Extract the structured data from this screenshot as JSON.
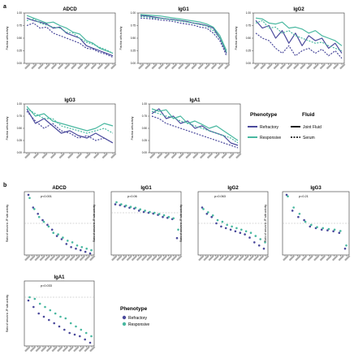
{
  "panel_labels": {
    "a": "a",
    "b": "b"
  },
  "legend_a": {
    "phenotype_title": "Phenotype",
    "fluid_title": "Fluid",
    "refractory": "Refractory",
    "responsive": "Responsive",
    "joint_fluid": "Joint Fluid",
    "serum": "Serum"
  },
  "legend_b": {
    "phenotype_title": "Phenotype",
    "refractory": "Refractory",
    "responsive": "Responsive"
  },
  "colors": {
    "refractory": "#4b4a9c",
    "responsive": "#49b8a0",
    "black": "#1a1a1a",
    "reference": "#b3b3b3"
  },
  "chart_data": [
    {
      "type": "line",
      "title": "ADCD",
      "ylabel": "Fraction with activity",
      "ylim": [
        0,
        1
      ],
      "yticks": [
        "1.00",
        "0.75",
        "0.50",
        "0.25",
        "0.00"
      ],
      "xlabel": "",
      "series": [
        {
          "name": "Refractory Joint Fluid",
          "values": [
            0.9,
            0.85,
            0.82,
            0.78,
            0.7,
            0.72,
            0.6,
            0.55,
            0.5,
            0.35,
            0.3,
            0.25,
            0.2,
            0.15
          ]
        },
        {
          "name": "Responsive Joint Fluid",
          "values": [
            0.95,
            0.9,
            0.85,
            0.8,
            0.82,
            0.75,
            0.7,
            0.62,
            0.58,
            0.45,
            0.4,
            0.3,
            0.25,
            0.2
          ]
        },
        {
          "name": "Refractory Serum",
          "values": [
            0.75,
            0.8,
            0.7,
            0.72,
            0.6,
            0.55,
            0.5,
            0.45,
            0.4,
            0.3,
            0.28,
            0.22,
            0.18,
            0.12
          ]
        },
        {
          "name": "Responsive Serum",
          "values": [
            0.85,
            0.88,
            0.8,
            0.76,
            0.72,
            0.7,
            0.62,
            0.6,
            0.5,
            0.42,
            0.38,
            0.32,
            0.27,
            0.2
          ]
        }
      ]
    },
    {
      "type": "line",
      "title": "IgG1",
      "ylabel": "Fraction with activity",
      "ylim": [
        0,
        1
      ],
      "yticks": [
        "1.00",
        "0.75",
        "0.50",
        "0.25",
        "0.00"
      ],
      "xlabel": "",
      "series": [
        {
          "name": "Refractory Joint Fluid",
          "values": [
            0.95,
            0.94,
            0.92,
            0.9,
            0.88,
            0.87,
            0.85,
            0.83,
            0.8,
            0.78,
            0.75,
            0.7,
            0.5,
            0.2
          ]
        },
        {
          "name": "Responsive Joint Fluid",
          "values": [
            0.97,
            0.96,
            0.95,
            0.94,
            0.92,
            0.9,
            0.88,
            0.86,
            0.84,
            0.82,
            0.78,
            0.72,
            0.55,
            0.25
          ]
        },
        {
          "name": "Refractory Serum",
          "values": [
            0.9,
            0.89,
            0.88,
            0.86,
            0.85,
            0.83,
            0.8,
            0.78,
            0.76,
            0.72,
            0.7,
            0.6,
            0.45,
            0.15
          ]
        },
        {
          "name": "Responsive Serum",
          "values": [
            0.93,
            0.92,
            0.9,
            0.89,
            0.88,
            0.86,
            0.84,
            0.82,
            0.8,
            0.77,
            0.74,
            0.65,
            0.5,
            0.22
          ]
        }
      ]
    },
    {
      "type": "line",
      "title": "IgG2",
      "ylabel": "Fraction with activity",
      "ylim": [
        0,
        1
      ],
      "yticks": [
        "1.00",
        "0.75",
        "0.50",
        "0.25",
        "0.00"
      ],
      "xlabel": "",
      "series": [
        {
          "name": "Refractory Joint Fluid",
          "values": [
            0.85,
            0.7,
            0.75,
            0.5,
            0.65,
            0.4,
            0.6,
            0.35,
            0.55,
            0.45,
            0.5,
            0.3,
            0.4,
            0.2
          ]
        },
        {
          "name": "Responsive Joint Fluid",
          "values": [
            0.9,
            0.88,
            0.8,
            0.78,
            0.82,
            0.7,
            0.72,
            0.68,
            0.6,
            0.65,
            0.55,
            0.5,
            0.45,
            0.35
          ]
        },
        {
          "name": "Refractory Serum",
          "values": [
            0.6,
            0.5,
            0.45,
            0.3,
            0.2,
            0.35,
            0.15,
            0.25,
            0.3,
            0.2,
            0.28,
            0.15,
            0.25,
            0.1
          ]
        },
        {
          "name": "Responsive Serum",
          "values": [
            0.8,
            0.85,
            0.7,
            0.72,
            0.6,
            0.65,
            0.55,
            0.5,
            0.45,
            0.4,
            0.42,
            0.35,
            0.3,
            0.25
          ]
        }
      ]
    },
    {
      "type": "line",
      "title": "IgG3",
      "ylabel": "Fraction with activity",
      "ylim": [
        0,
        1
      ],
      "yticks": [
        "1.00",
        "0.75",
        "0.50",
        "0.25",
        "0.00"
      ],
      "xlabel": "",
      "series": [
        {
          "name": "Refractory Joint Fluid",
          "values": [
            0.9,
            0.6,
            0.7,
            0.55,
            0.4,
            0.45,
            0.35,
            0.3,
            0.4,
            0.3,
            0.2
          ]
        },
        {
          "name": "Responsive Joint Fluid",
          "values": [
            0.95,
            0.75,
            0.8,
            0.65,
            0.6,
            0.55,
            0.5,
            0.45,
            0.5,
            0.6,
            0.55
          ]
        },
        {
          "name": "Refractory Serum",
          "values": [
            0.85,
            0.65,
            0.5,
            0.6,
            0.45,
            0.4,
            0.3,
            0.35,
            0.25,
            0.3,
            0.2
          ]
        },
        {
          "name": "Responsive Serum",
          "values": [
            0.9,
            0.8,
            0.7,
            0.7,
            0.55,
            0.5,
            0.45,
            0.4,
            0.45,
            0.5,
            0.4
          ]
        }
      ]
    },
    {
      "type": "line",
      "title": "IgA1",
      "ylabel": "Fraction with activity",
      "ylim": [
        0,
        1
      ],
      "yticks": [
        "1.00",
        "0.75",
        "0.50",
        "0.25",
        "0.00"
      ],
      "xlabel": "",
      "series": [
        {
          "name": "Refractory Joint Fluid",
          "values": [
            0.8,
            0.9,
            0.7,
            0.75,
            0.6,
            0.65,
            0.5,
            0.55,
            0.45,
            0.4,
            0.35,
            0.2,
            0.15
          ]
        },
        {
          "name": "Responsive Joint Fluid",
          "values": [
            0.9,
            0.85,
            0.88,
            0.7,
            0.75,
            0.6,
            0.65,
            0.58,
            0.5,
            0.55,
            0.45,
            0.35,
            0.25
          ]
        },
        {
          "name": "Refractory Serum",
          "values": [
            0.75,
            0.7,
            0.6,
            0.55,
            0.5,
            0.45,
            0.4,
            0.35,
            0.3,
            0.25,
            0.2,
            0.15,
            0.1
          ]
        },
        {
          "name": "Responsive Serum",
          "values": [
            0.85,
            0.8,
            0.75,
            0.72,
            0.65,
            0.6,
            0.55,
            0.5,
            0.45,
            0.4,
            0.35,
            0.3,
            0.2
          ]
        }
      ]
    },
    {
      "type": "scatter",
      "title": "ADCD",
      "pvalue": "p<0.001",
      "ylabel": "Ratio of serum to JF with activity",
      "ylim": [
        0,
        2
      ],
      "reference_y": 1,
      "series": [
        {
          "name": "Refractory",
          "values": [
            1.9,
            1.5,
            1.3,
            1.1,
            0.95,
            0.8,
            0.6,
            0.5,
            0.35,
            0.25,
            0.2,
            0.15,
            0.1,
            0.05
          ]
        },
        {
          "name": "Responsive",
          "values": [
            1.8,
            1.45,
            1.2,
            1.05,
            0.9,
            0.7,
            0.65,
            0.55,
            0.45,
            0.4,
            0.3,
            0.25,
            0.2,
            0.15
          ]
        }
      ]
    },
    {
      "type": "scatter",
      "title": "IgG1",
      "pvalue": "p=0.06",
      "ylabel": "Ratio of serum to JF with activity",
      "ylim": [
        0,
        1.5
      ],
      "reference_y": 1,
      "series": [
        {
          "name": "Refractory",
          "values": [
            1.2,
            1.18,
            1.15,
            1.12,
            1.1,
            1.05,
            1.02,
            1.0,
            0.98,
            0.95,
            0.9,
            0.88,
            0.85,
            0.4
          ]
        },
        {
          "name": "Responsive",
          "values": [
            1.25,
            1.2,
            1.17,
            1.14,
            1.12,
            1.08,
            1.05,
            1.02,
            1.0,
            0.97,
            0.94,
            0.9,
            0.87,
            0.6
          ]
        }
      ]
    },
    {
      "type": "scatter",
      "title": "IgG2",
      "pvalue": "p=0.063",
      "ylabel": "Ratio of serum to JF with activity",
      "ylim": [
        0,
        2
      ],
      "reference_y": 1,
      "series": [
        {
          "name": "Refractory",
          "values": [
            1.5,
            1.3,
            1.2,
            1.0,
            0.9,
            0.85,
            0.8,
            0.75,
            0.7,
            0.65,
            0.55,
            0.4,
            0.3,
            0.2
          ]
        },
        {
          "name": "Responsive",
          "values": [
            1.45,
            1.35,
            1.25,
            1.1,
            1.05,
            0.95,
            0.9,
            0.85,
            0.8,
            0.75,
            0.7,
            0.6,
            0.5,
            0.4
          ]
        }
      ]
    },
    {
      "type": "scatter",
      "title": "IgG3",
      "pvalue": "p=0.21",
      "ylabel": "Ratio of serum to JF with activity",
      "ylim": [
        0,
        2
      ],
      "reference_y": 1,
      "series": [
        {
          "name": "Refractory",
          "values": [
            1.9,
            1.4,
            1.2,
            1.1,
            0.9,
            0.85,
            0.8,
            0.78,
            0.75,
            0.7,
            0.2
          ]
        },
        {
          "name": "Responsive",
          "values": [
            1.85,
            1.5,
            1.3,
            1.05,
            0.95,
            0.88,
            0.85,
            0.82,
            0.8,
            0.76,
            0.3
          ]
        }
      ]
    },
    {
      "type": "scatter",
      "title": "IgA1",
      "pvalue": "p=0.033",
      "ylabel": "Ratio of serum to JF with activity",
      "ylim": [
        0,
        2
      ],
      "reference_y": 1.5,
      "series": [
        {
          "name": "Refractory",
          "values": [
            1.4,
            1.2,
            1.0,
            0.9,
            0.8,
            0.7,
            0.6,
            0.5,
            0.4,
            0.35,
            0.3,
            0.2,
            0.1
          ]
        },
        {
          "name": "Responsive",
          "values": [
            1.5,
            1.45,
            1.3,
            1.2,
            1.1,
            1.0,
            0.9,
            0.85,
            0.7,
            0.6,
            0.5,
            0.4,
            0.3
          ]
        }
      ]
    }
  ]
}
